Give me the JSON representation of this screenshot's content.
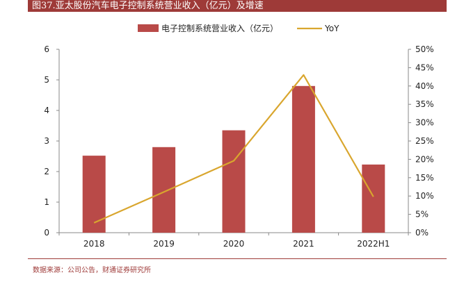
{
  "header": {
    "title": "图37.亚太股份汽车电子控制系统营业收入（亿元）及增速"
  },
  "footer": {
    "source": "数据来源：公司公告，财通证券研究所"
  },
  "colors": {
    "bar": "#b94a48",
    "line": "#d9a62e",
    "title_bg": "#9e3a38",
    "axis": "#888888"
  },
  "chart_data": {
    "type": "bar",
    "categories": [
      "2018",
      "2019",
      "2020",
      "2021",
      "2022H1"
    ],
    "series": [
      {
        "name": "电子控制系统营业收入（亿元）",
        "type": "bar",
        "axis": "left",
        "values": [
          2.52,
          2.8,
          3.35,
          4.8,
          2.23
        ]
      },
      {
        "name": "YoY",
        "type": "line",
        "axis": "right",
        "values": [
          2.7,
          11.1,
          19.6,
          43.0,
          9.8
        ]
      }
    ],
    "y_left": {
      "min": 0,
      "max": 6,
      "ticks": [
        "0",
        "1",
        "2",
        "3",
        "4",
        "5",
        "6"
      ]
    },
    "y_right": {
      "min": 0,
      "max": 50,
      "ticks": [
        "0%",
        "5%",
        "10%",
        "15%",
        "20%",
        "25%",
        "30%",
        "35%",
        "40%",
        "45%",
        "50%"
      ]
    },
    "legend_position": "top",
    "grid": false
  }
}
